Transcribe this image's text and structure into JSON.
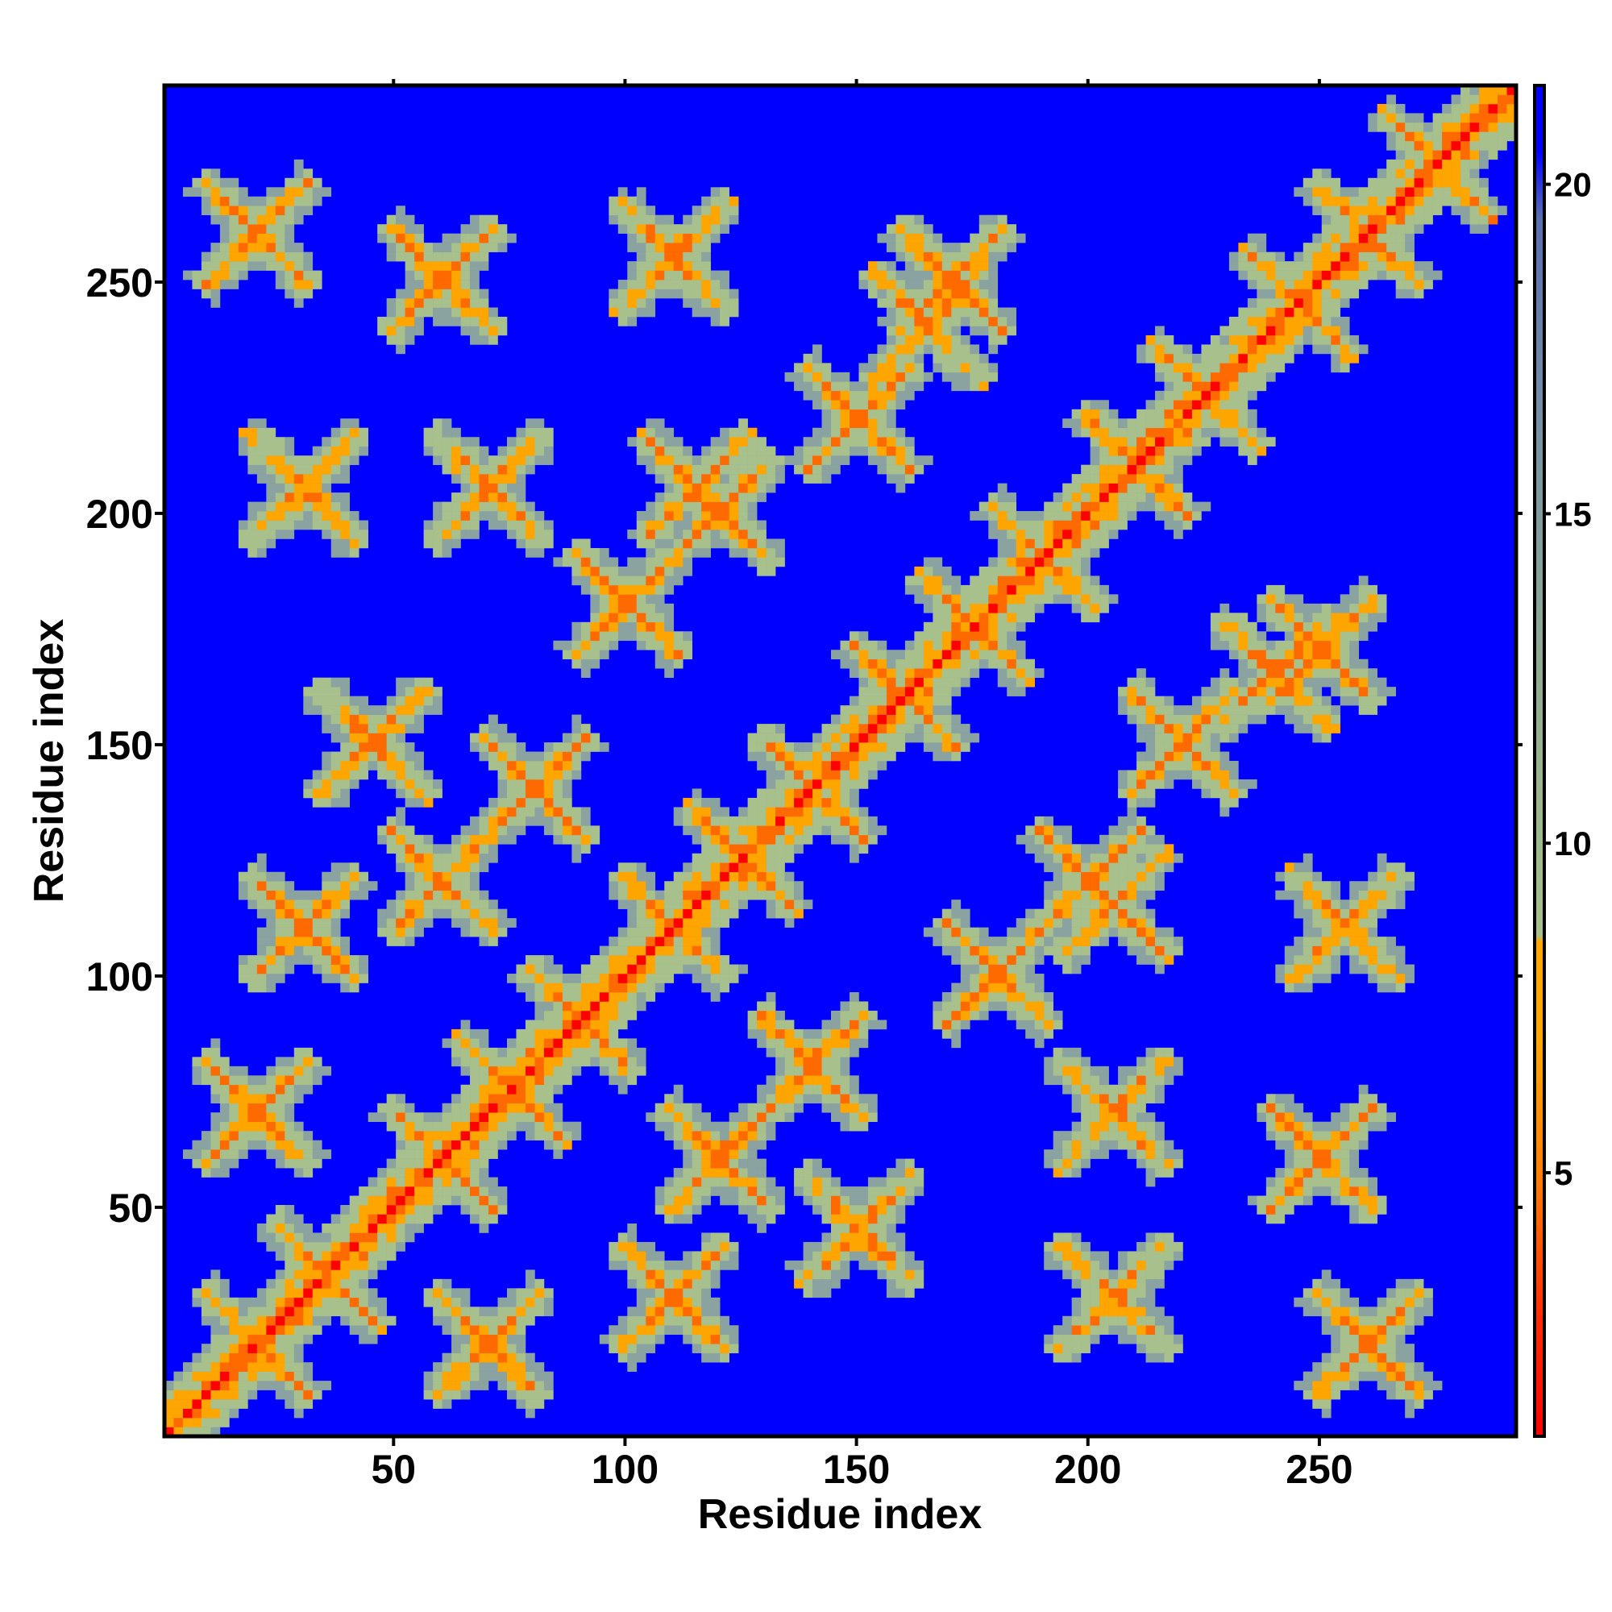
{
  "chart_data": {
    "type": "heatmap",
    "title": "",
    "xlabel": "Residue index",
    "ylabel": "Residue index",
    "xlim": [
      1,
      292
    ],
    "ylim": [
      1,
      292
    ],
    "x_ticks": [
      {
        "value": 50,
        "label": "50"
      },
      {
        "value": 100,
        "label": "100"
      },
      {
        "value": 150,
        "label": "150"
      },
      {
        "value": 200,
        "label": "200"
      },
      {
        "value": 250,
        "label": "250"
      }
    ],
    "y_ticks": [
      {
        "value": 50,
        "label": "50"
      },
      {
        "value": 100,
        "label": "100"
      },
      {
        "value": 150,
        "label": "150"
      },
      {
        "value": 200,
        "label": "200"
      },
      {
        "value": 250,
        "label": "250"
      }
    ],
    "colorbar": {
      "range": [
        1,
        21.5
      ],
      "ticks": [
        {
          "value": 5,
          "label": "5"
        },
        {
          "value": 10,
          "label": "10"
        },
        {
          "value": 15,
          "label": "15"
        },
        {
          "value": 20,
          "label": "20"
        }
      ],
      "colors": [
        {
          "value": 1,
          "color": "#ff0000"
        },
        {
          "value": 3,
          "color": "#ff3300"
        },
        {
          "value": 5,
          "color": "#ff8000"
        },
        {
          "value": 7,
          "color": "#ffa500"
        },
        {
          "value": 8.5,
          "color": "#ffa500"
        },
        {
          "value": 8.6,
          "color": "#a8c08c"
        },
        {
          "value": 12,
          "color": "#93b090"
        },
        {
          "value": 16,
          "color": "#7b94a2"
        },
        {
          "value": 19.5,
          "color": "#5a6fb0"
        },
        {
          "value": 20.5,
          "color": "#0000ff"
        },
        {
          "value": 21.5,
          "color": "#0000ff"
        }
      ]
    },
    "matrix_description": "Symmetric residue-residue distance map with cross-shaped contact patterns",
    "background_value": 21,
    "background_color": "#0000ff"
  }
}
